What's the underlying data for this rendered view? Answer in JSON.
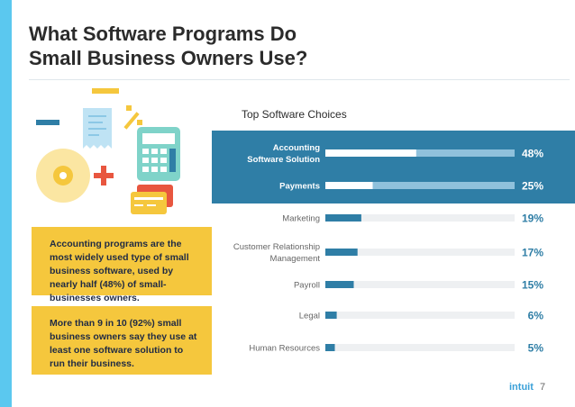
{
  "page": {
    "title_line1": "What Software Programs Do",
    "title_line2": "Small Business Owners Use?",
    "callout_1": "Accounting programs are the most widely used type of small business software, used by nearly half (48%) of small-businesses owners.",
    "callout_2": "More than 9 in 10 (92%) small business owners say they use at least one software solution to run their business.",
    "brand": "intuit",
    "page_number": "7"
  },
  "colors": {
    "accent_blue": "#2f7ea6",
    "bar_blue": "#2f7ea6",
    "track_grey": "#eef0f2",
    "yellow": "#f5c73d",
    "stripe_cyan": "#5bc8ef"
  },
  "chart_data": {
    "type": "bar",
    "orientation": "horizontal",
    "title": "Top Software Choices",
    "categories": [
      [
        "Accounting",
        "Software Solution"
      ],
      [
        "Payments"
      ],
      [
        "Marketing"
      ],
      [
        "Customer Relationship",
        "Management"
      ],
      [
        "Payroll"
      ],
      [
        "Legal"
      ],
      [
        "Human Resources"
      ]
    ],
    "values": [
      48,
      25,
      19,
      17,
      15,
      6,
      5
    ],
    "value_labels": [
      "48%",
      "25%",
      "19%",
      "17%",
      "15%",
      "6%",
      "5%"
    ],
    "highlighted": [
      true,
      true,
      false,
      false,
      false,
      false,
      false
    ],
    "xlim": [
      0,
      100
    ],
    "grid": false
  }
}
